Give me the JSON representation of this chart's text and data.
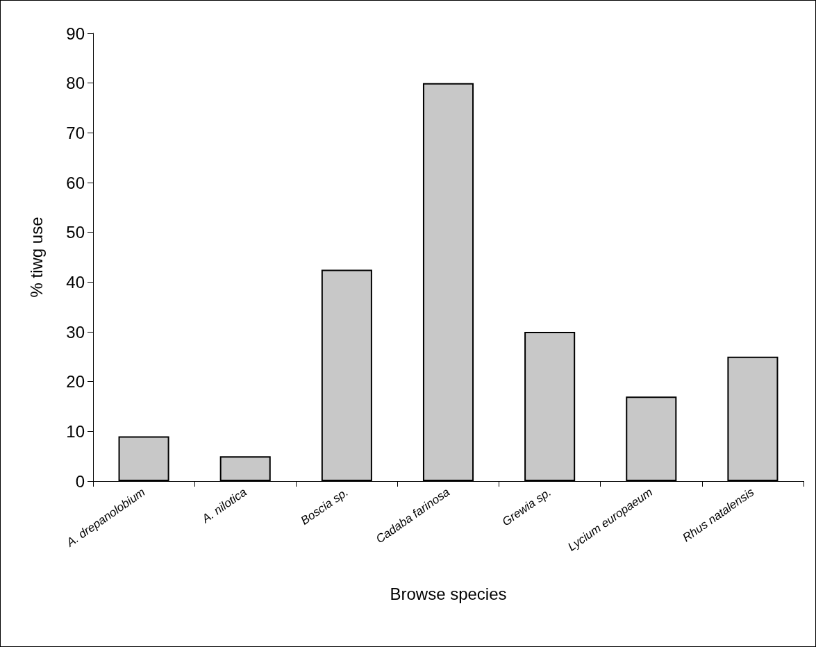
{
  "chart_data": {
    "type": "bar",
    "xlabel": "Browse species",
    "ylabel": "% tiwg use",
    "categories": [
      "A. drepanolobium",
      "A. nilotica",
      "Boscia sp.",
      "Cadaba farinosa",
      "Grewia sp.",
      "Lycium europaeum",
      "Rhus natalensis"
    ],
    "values": [
      9,
      5,
      42.5,
      80,
      30,
      17,
      25
    ],
    "color": "#c8c8c8",
    "ylim": [
      0,
      90
    ],
    "yticks": [
      0,
      10,
      20,
      30,
      40,
      50,
      60,
      70,
      80,
      90
    ],
    "grid": false
  }
}
